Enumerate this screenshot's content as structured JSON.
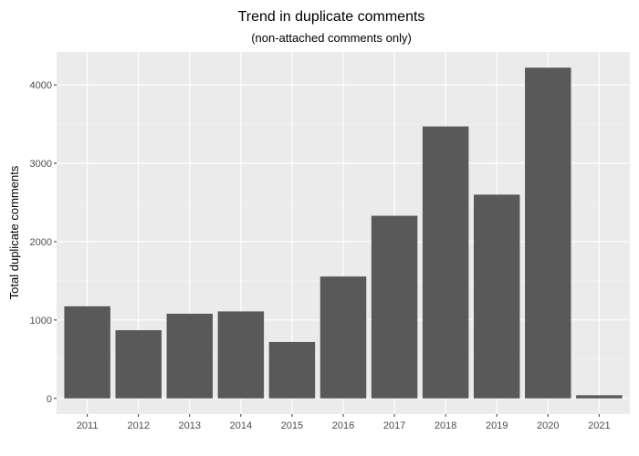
{
  "chart_data": {
    "type": "bar",
    "title": "Trend in duplicate comments",
    "subtitle": "(non-attached comments only)",
    "xlabel": "",
    "ylabel": "Total duplicate comments",
    "categories": [
      "2011",
      "2012",
      "2013",
      "2014",
      "2015",
      "2016",
      "2017",
      "2018",
      "2019",
      "2020",
      "2021"
    ],
    "values": [
      1175,
      870,
      1080,
      1110,
      720,
      1555,
      2330,
      3470,
      2600,
      4220,
      40
    ],
    "ylim": [
      -200,
      4420
    ],
    "yticks": [
      0,
      1000,
      2000,
      3000,
      4000
    ],
    "ytick_labels": [
      "0",
      "1000",
      "2000",
      "3000",
      "4000"
    ],
    "grid": true,
    "legend": "none",
    "colors": {
      "panel_background": "#ebebeb",
      "grid_major": "#ffffff",
      "bar_fill": "#595959"
    }
  }
}
